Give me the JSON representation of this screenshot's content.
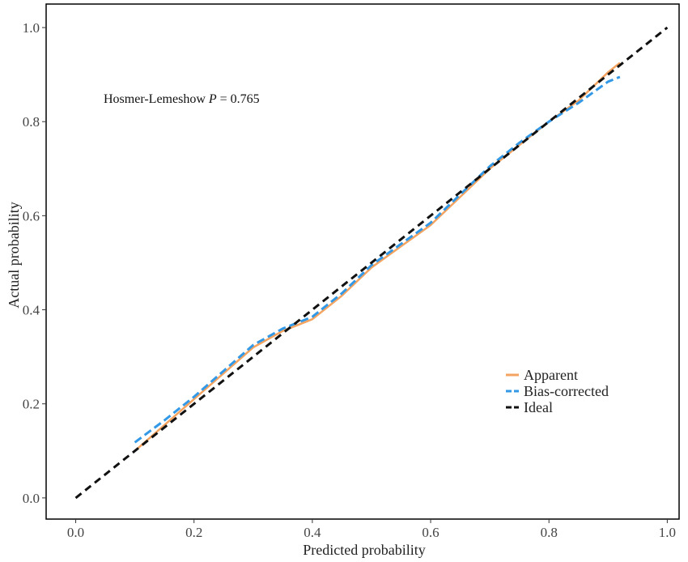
{
  "chart_data": {
    "type": "line",
    "title": "",
    "xlabel": "Predicted probability",
    "ylabel": "Actual probability",
    "xlim": [
      -0.05,
      1.02
    ],
    "ylim": [
      -0.045,
      1.05
    ],
    "xticks": [
      0.0,
      0.2,
      0.4,
      0.6,
      0.8,
      1.0
    ],
    "yticks": [
      0.0,
      0.2,
      0.4,
      0.6,
      0.8,
      1.0
    ],
    "xtick_labels": [
      "0.0",
      "0.2",
      "0.4",
      "0.6",
      "0.8",
      "1.0"
    ],
    "ytick_labels": [
      "0.0",
      "0.2",
      "0.4",
      "0.6",
      "0.8",
      "1.0"
    ],
    "grid": false,
    "legend_position": "bottom-right",
    "annotation": {
      "prefix": "Hosmer-Lemeshow ",
      "p_symbol": "P",
      "suffix": " = 0.765"
    },
    "series": [
      {
        "name": "Apparent",
        "color": "#F4A460",
        "style": "solid",
        "x": [
          0.1,
          0.15,
          0.2,
          0.25,
          0.3,
          0.35,
          0.4,
          0.45,
          0.5,
          0.55,
          0.6,
          0.65,
          0.7,
          0.75,
          0.8,
          0.85,
          0.9,
          0.92
        ],
        "y": [
          0.1,
          0.155,
          0.21,
          0.265,
          0.32,
          0.355,
          0.38,
          0.43,
          0.49,
          0.535,
          0.58,
          0.64,
          0.7,
          0.75,
          0.8,
          0.845,
          0.905,
          0.925
        ]
      },
      {
        "name": "Bias-corrected",
        "color": "#3399E6",
        "style": "dashed",
        "x": [
          0.1,
          0.15,
          0.2,
          0.25,
          0.3,
          0.35,
          0.4,
          0.45,
          0.5,
          0.55,
          0.6,
          0.65,
          0.7,
          0.75,
          0.8,
          0.85,
          0.9,
          0.92
        ],
        "y": [
          0.118,
          0.165,
          0.215,
          0.27,
          0.325,
          0.36,
          0.385,
          0.435,
          0.495,
          0.54,
          0.585,
          0.645,
          0.705,
          0.755,
          0.8,
          0.84,
          0.885,
          0.895
        ]
      },
      {
        "name": "Ideal",
        "color": "#111111",
        "style": "dashed",
        "x": [
          0.0,
          1.0
        ],
        "y": [
          0.0,
          1.0
        ]
      }
    ]
  }
}
